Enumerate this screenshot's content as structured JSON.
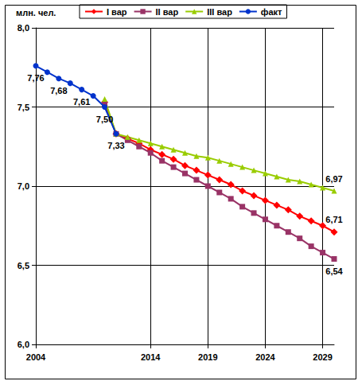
{
  "chart_data": {
    "type": "line",
    "ylabel": "млн. чел.",
    "x": [
      2004,
      2005,
      2006,
      2007,
      2008,
      2009,
      2010,
      2011,
      2012,
      2013,
      2014,
      2015,
      2016,
      2017,
      2018,
      2019,
      2020,
      2021,
      2022,
      2023,
      2024,
      2025,
      2026,
      2027,
      2028,
      2029,
      2030
    ],
    "series": [
      {
        "name": "I вар",
        "color": "#ff0000",
        "marker": "diamond",
        "values": [
          null,
          null,
          null,
          null,
          null,
          null,
          7.53,
          7.33,
          7.3,
          7.27,
          7.23,
          7.2,
          7.17,
          7.13,
          7.1,
          7.07,
          7.04,
          7.01,
          6.97,
          6.94,
          6.91,
          6.88,
          6.85,
          6.81,
          6.78,
          6.75,
          6.71
        ],
        "value_labels": [
          null,
          null,
          null,
          null,
          null,
          null,
          null,
          null,
          null,
          null,
          null,
          null,
          null,
          null,
          null,
          null,
          null,
          null,
          null,
          null,
          null,
          null,
          null,
          null,
          null,
          null,
          "6,71"
        ]
      },
      {
        "name": "II вар",
        "color": "#993366",
        "marker": "square",
        "values": [
          null,
          null,
          null,
          null,
          null,
          null,
          7.52,
          7.33,
          7.29,
          7.25,
          7.21,
          7.16,
          7.12,
          7.08,
          7.04,
          7.0,
          6.96,
          6.92,
          6.87,
          6.83,
          6.79,
          6.75,
          6.71,
          6.67,
          6.62,
          6.58,
          6.54
        ],
        "value_labels": [
          null,
          null,
          null,
          null,
          null,
          null,
          null,
          null,
          null,
          null,
          null,
          null,
          null,
          null,
          null,
          null,
          null,
          null,
          null,
          null,
          null,
          null,
          null,
          null,
          null,
          null,
          "6,54"
        ]
      },
      {
        "name": "III вар",
        "color": "#99cc00",
        "marker": "triangle",
        "values": [
          null,
          null,
          null,
          null,
          null,
          null,
          7.55,
          7.33,
          7.31,
          7.29,
          7.27,
          7.25,
          7.23,
          7.21,
          7.19,
          7.18,
          7.16,
          7.14,
          7.12,
          7.1,
          7.08,
          7.06,
          7.04,
          7.03,
          7.01,
          6.99,
          6.97
        ],
        "value_labels": [
          null,
          null,
          null,
          null,
          null,
          null,
          null,
          null,
          null,
          null,
          null,
          null,
          null,
          null,
          null,
          null,
          null,
          null,
          null,
          null,
          null,
          null,
          null,
          null,
          null,
          null,
          "6,97"
        ]
      },
      {
        "name": "факт",
        "color": "#0033cc",
        "marker": "circle",
        "values": [
          7.76,
          7.72,
          7.68,
          7.65,
          7.61,
          7.57,
          7.5,
          7.33,
          null,
          null,
          null,
          null,
          null,
          null,
          null,
          null,
          null,
          null,
          null,
          null,
          null,
          null,
          null,
          null,
          null,
          null,
          null
        ],
        "value_labels": [
          "7,76",
          null,
          "7,68",
          null,
          "7,61",
          null,
          "7,50",
          "7,33",
          null,
          null,
          null,
          null,
          null,
          null,
          null,
          null,
          null,
          null,
          null,
          null,
          null,
          null,
          null,
          null,
          null,
          null,
          null
        ]
      }
    ],
    "xlim": [
      2004,
      2030
    ],
    "xticks": [
      2004,
      2014,
      2019,
      2024,
      2029
    ],
    "ylim": [
      6.0,
      8.0
    ],
    "yticks": [
      {
        "value": 6.0,
        "label": "6,0"
      },
      {
        "value": 6.5,
        "label": "6,5"
      },
      {
        "value": 7.0,
        "label": "7,0"
      },
      {
        "value": 7.5,
        "label": "7,5"
      },
      {
        "value": 8.0,
        "label": "8,0"
      }
    ],
    "grid": true,
    "legend": "top",
    "data_labels": true
  }
}
